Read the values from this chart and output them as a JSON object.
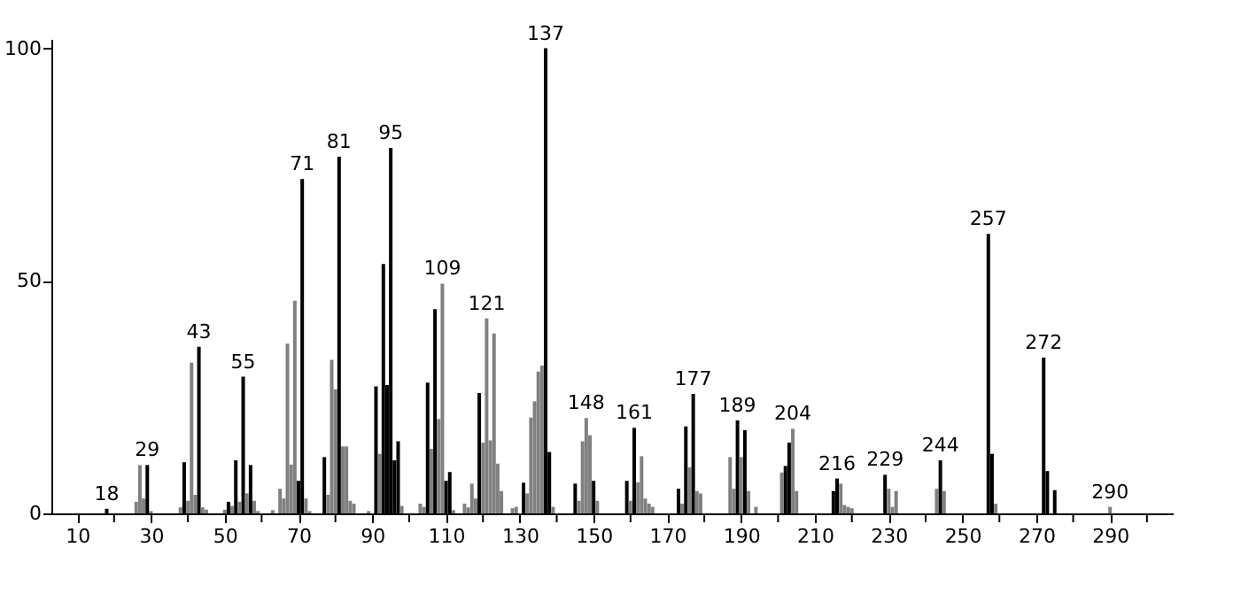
{
  "chart_data": {
    "type": "bar",
    "x": [
      18,
      26,
      27,
      28,
      29,
      30,
      38,
      39,
      40,
      41,
      42,
      43,
      44,
      45,
      50,
      51,
      52,
      53,
      54,
      55,
      56,
      57,
      58,
      59,
      63,
      65,
      66,
      67,
      68,
      69,
      70,
      71,
      72,
      73,
      77,
      78,
      79,
      80,
      81,
      82,
      83,
      84,
      85,
      89,
      91,
      92,
      93,
      94,
      95,
      96,
      97,
      98,
      103,
      104,
      105,
      106,
      107,
      108,
      109,
      110,
      111,
      112,
      115,
      116,
      117,
      118,
      119,
      120,
      121,
      122,
      123,
      124,
      125,
      128,
      129,
      131,
      132,
      133,
      134,
      135,
      136,
      137,
      138,
      139,
      145,
      146,
      147,
      148,
      149,
      150,
      151,
      159,
      160,
      161,
      162,
      163,
      164,
      165,
      166,
      173,
      174,
      175,
      176,
      177,
      178,
      179,
      187,
      188,
      189,
      190,
      191,
      192,
      194,
      201,
      202,
      203,
      204,
      205,
      215,
      216,
      217,
      218,
      219,
      220,
      229,
      230,
      231,
      232,
      243,
      244,
      245,
      257,
      258,
      259,
      272,
      273,
      275,
      290
    ],
    "values": [
      1,
      2.5,
      10.4,
      3.2,
      10.4,
      0.5,
      1.3,
      11,
      2.7,
      32.4,
      4,
      35.8,
      1.3,
      0.8,
      0.8,
      2.5,
      1.6,
      11.4,
      2.5,
      29.4,
      4.3,
      10.4,
      2.7,
      0.5,
      0.7,
      5.3,
      3.2,
      36.5,
      10.5,
      45.7,
      7,
      71.9,
      3.2,
      0.5,
      12.1,
      4,
      33,
      26.7,
      76.7,
      14.4,
      14.4,
      2.7,
      2.1,
      0.5,
      27.3,
      12.8,
      53.6,
      27.6,
      78.6,
      11.4,
      15.5,
      1.6,
      2.1,
      1.4,
      28.1,
      13.9,
      43.9,
      20.3,
      49.4,
      7,
      8.9,
      0.7,
      2.1,
      1.3,
      6.4,
      3.2,
      25.9,
      15.2,
      41.9,
      15.7,
      38.7,
      10.7,
      4.8,
      1.1,
      1.4,
      6.6,
      4.3,
      20.6,
      24.1,
      30.5,
      31.8,
      100,
      13.2,
      1.4,
      6.4,
      2.7,
      15.5,
      20.5,
      16.8,
      7,
      2.7,
      7,
      2.7,
      18.4,
      6.7,
      12.3,
      3.2,
      2.1,
      1.4,
      5.3,
      2.1,
      18.7,
      9.9,
      25.7,
      4.8,
      4.3,
      12.1,
      5.3,
      20,
      12.1,
      17.9,
      4.8,
      1.4,
      8.8,
      10.2,
      15.2,
      18.2,
      4.8,
      4.8,
      7.5,
      6.4,
      1.8,
      1.4,
      1.1,
      8.3,
      5.3,
      1.4,
      4.8,
      5.3,
      11.4,
      4.8,
      60.1,
      12.8,
      2.1,
      33.5,
      9.1,
      5,
      1.4
    ],
    "colors": [
      "#000000",
      "#808080",
      "#808080",
      "#808080",
      "#000000",
      "#808080",
      "#808080",
      "#000000",
      "#808080",
      "#808080",
      "#808080",
      "#000000",
      "#808080",
      "#808080",
      "#808080",
      "#000000",
      "#808080",
      "#000000",
      "#808080",
      "#000000",
      "#808080",
      "#000000",
      "#808080",
      "#808080",
      "#808080",
      "#808080",
      "#808080",
      "#808080",
      "#808080",
      "#808080",
      "#000000",
      "#000000",
      "#808080",
      "#808080",
      "#000000",
      "#808080",
      "#808080",
      "#808080",
      "#000000",
      "#808080",
      "#808080",
      "#808080",
      "#808080",
      "#808080",
      "#000000",
      "#808080",
      "#000000",
      "#000000",
      "#000000",
      "#000000",
      "#000000",
      "#808080",
      "#808080",
      "#808080",
      "#000000",
      "#808080",
      "#000000",
      "#808080",
      "#808080",
      "#000000",
      "#000000",
      "#808080",
      "#808080",
      "#808080",
      "#808080",
      "#808080",
      "#000000",
      "#808080",
      "#808080",
      "#808080",
      "#808080",
      "#808080",
      "#808080",
      "#808080",
      "#808080",
      "#000000",
      "#808080",
      "#808080",
      "#808080",
      "#808080",
      "#808080",
      "#000000",
      "#000000",
      "#808080",
      "#000000",
      "#808080",
      "#808080",
      "#808080",
      "#808080",
      "#000000",
      "#808080",
      "#000000",
      "#808080",
      "#000000",
      "#808080",
      "#808080",
      "#808080",
      "#808080",
      "#808080",
      "#000000",
      "#808080",
      "#000000",
      "#808080",
      "#000000",
      "#808080",
      "#808080",
      "#808080",
      "#808080",
      "#000000",
      "#808080",
      "#000000",
      "#808080",
      "#808080",
      "#808080",
      "#000000",
      "#000000",
      "#808080",
      "#808080",
      "#000000",
      "#000000",
      "#808080",
      "#808080",
      "#808080",
      "#808080",
      "#000000",
      "#808080",
      "#808080",
      "#808080",
      "#808080",
      "#000000",
      "#808080",
      "#000000",
      "#000000",
      "#808080",
      "#000000",
      "#000000",
      "#000000",
      "#808080"
    ],
    "xlim": [
      3,
      307
    ],
    "ylim": [
      0,
      102
    ],
    "xticks": [
      10,
      {
        "value": 20,
        "label": null
      },
      30,
      {
        "value": 40,
        "label": null
      },
      50,
      {
        "value": 60,
        "label": null
      },
      70,
      {
        "value": 80,
        "label": null
      },
      90,
      {
        "value": 100,
        "label": null
      },
      110,
      {
        "value": 120,
        "label": null
      },
      130,
      {
        "value": 140,
        "label": null
      },
      150,
      {
        "value": 160,
        "label": null
      },
      170,
      {
        "value": 180,
        "label": null
      },
      190,
      {
        "value": 200,
        "label": null
      },
      210,
      {
        "value": 220,
        "label": null
      },
      230,
      {
        "value": 240,
        "label": null
      },
      250,
      {
        "value": 260,
        "label": null
      },
      270,
      {
        "value": 280,
        "label": null
      },
      290,
      {
        "value": 300,
        "label": null
      }
    ],
    "yticks": [
      0,
      50,
      100
    ],
    "annotations": [
      {
        "text": "18",
        "x": 18,
        "y": 1
      },
      {
        "text": "29",
        "x": 29,
        "y": 10.4
      },
      {
        "text": "43",
        "x": 43,
        "y": 35.8
      },
      {
        "text": "55",
        "x": 55,
        "y": 29.4
      },
      {
        "text": "71",
        "x": 71,
        "y": 71.9
      },
      {
        "text": "81",
        "x": 81,
        "y": 76.7
      },
      {
        "text": "95",
        "x": 95,
        "y": 78.6
      },
      {
        "text": "109",
        "x": 109,
        "y": 49.4
      },
      {
        "text": "121",
        "x": 121,
        "y": 41.9
      },
      {
        "text": "137",
        "x": 137,
        "y": 100
      },
      {
        "text": "148",
        "x": 148,
        "y": 20.5
      },
      {
        "text": "161",
        "x": 161,
        "y": 18.4
      },
      {
        "text": "177",
        "x": 177,
        "y": 25.7
      },
      {
        "text": "189",
        "x": 189,
        "y": 20
      },
      {
        "text": "204",
        "x": 204,
        "y": 18.2
      },
      {
        "text": "216",
        "x": 216,
        "y": 7.5
      },
      {
        "text": "229",
        "x": 229,
        "y": 8.3
      },
      {
        "text": "244",
        "x": 244,
        "y": 11.4
      },
      {
        "text": "257",
        "x": 257,
        "y": 60.1
      },
      {
        "text": "272",
        "x": 272,
        "y": 33.5
      },
      {
        "text": "290",
        "x": 290,
        "y": 1.4
      }
    ],
    "grid": false
  }
}
